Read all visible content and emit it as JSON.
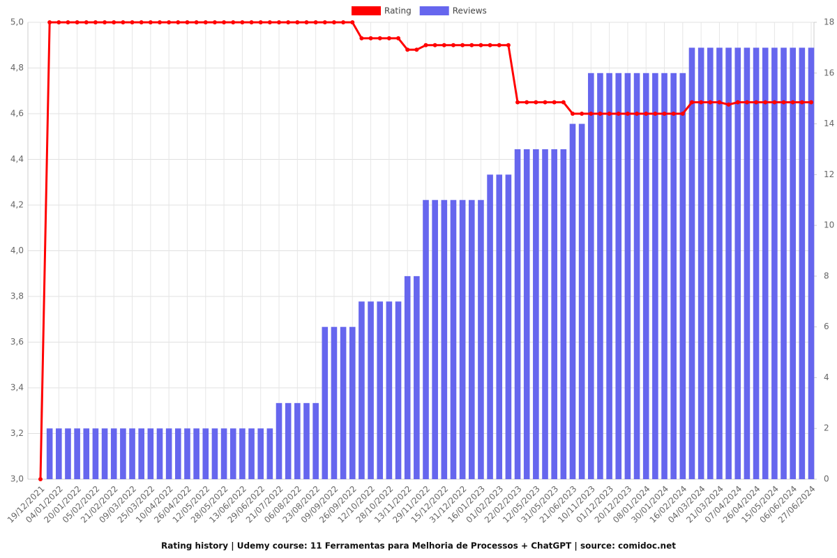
{
  "chart_data": {
    "type": "bar-line",
    "title": "Rating history | Udemy course: 11 Ferramentas para Melhoria de Processos + ChatGPT | source: comidoc.net",
    "categories": [
      "19/12/2021",
      null,
      "04/01/2022",
      null,
      "20/01/2022",
      null,
      "05/02/2022",
      null,
      "21/02/2022",
      null,
      "09/03/2022",
      null,
      "25/03/2022",
      null,
      "10/04/2022",
      null,
      "26/04/2022",
      null,
      "12/05/2022",
      null,
      "28/05/2022",
      null,
      "13/06/2022",
      null,
      "29/06/2022",
      null,
      "21/07/2022",
      null,
      "06/08/2022",
      null,
      "23/08/2022",
      null,
      "09/09/2022",
      null,
      "26/09/2022",
      null,
      "12/10/2022",
      null,
      "28/10/2022",
      null,
      "13/11/2022",
      null,
      "29/11/2022",
      null,
      "15/12/2022",
      null,
      "31/12/2022",
      null,
      "16/01/2023",
      null,
      "01/02/2023",
      null,
      "22/02/2023",
      null,
      "12/05/2023",
      null,
      "31/05/2023",
      null,
      "21/06/2023",
      null,
      "10/11/2023",
      null,
      "01/12/2023",
      null,
      "20/12/2023",
      null,
      "08/01/2024",
      null,
      "30/01/2024",
      null,
      "16/02/2024",
      null,
      "04/03/2024",
      null,
      "21/03/2024",
      null,
      "07/04/2024",
      null,
      "26/04/2024",
      null,
      "15/05/2024",
      null,
      "06/06/2024",
      null,
      "27/06/2024"
    ],
    "series": [
      {
        "name": "Rating",
        "color": "#ff0000",
        "kind": "line",
        "values": [
          3.0,
          5,
          5,
          5,
          5,
          5,
          5,
          5,
          5,
          5,
          5,
          5,
          5,
          5,
          5,
          5,
          5,
          5,
          5,
          5,
          5,
          5,
          5,
          5,
          5,
          5,
          5,
          5,
          5,
          5,
          5,
          5,
          5,
          5,
          5,
          4.93,
          4.93,
          4.93,
          4.93,
          4.93,
          4.88,
          4.88,
          4.9,
          4.9,
          4.9,
          4.9,
          4.9,
          4.9,
          4.9,
          4.9,
          4.9,
          4.9,
          4.65,
          4.65,
          4.65,
          4.65,
          4.65,
          4.65,
          4.6,
          4.6,
          4.6,
          4.6,
          4.6,
          4.6,
          4.6,
          4.6,
          4.6,
          4.6,
          4.6,
          4.6,
          4.6,
          4.65,
          4.65,
          4.65,
          4.65,
          4.64,
          4.65,
          4.65,
          4.65,
          4.65,
          4.65,
          4.65,
          4.65,
          4.65,
          4.65
        ]
      },
      {
        "name": "Reviews",
        "color": "#6666ee",
        "kind": "bar",
        "axis": "y2",
        "values": [
          0,
          2,
          2,
          2,
          2,
          2,
          2,
          2,
          2,
          2,
          2,
          2,
          2,
          2,
          2,
          2,
          2,
          2,
          2,
          2,
          2,
          2,
          2,
          2,
          2,
          2,
          3,
          3,
          3,
          3,
          3,
          6,
          6,
          6,
          6,
          7,
          7,
          7,
          7,
          7,
          8,
          8,
          11,
          11,
          11,
          11,
          11,
          11,
          11,
          12,
          12,
          12,
          13,
          13,
          13,
          13,
          13,
          13,
          14,
          14,
          16,
          16,
          16,
          16,
          16,
          16,
          16,
          16,
          16,
          16,
          16,
          17,
          17,
          17,
          17,
          17,
          17,
          17,
          17,
          17,
          17,
          17,
          17,
          17,
          17
        ]
      }
    ],
    "ylim": [
      3.0,
      5.0
    ],
    "yticks": [
      {
        "value": 3.0,
        "label": "3,0"
      },
      {
        "value": 3.2,
        "label": "3,2"
      },
      {
        "value": 3.4,
        "label": "3,4"
      },
      {
        "value": 3.6,
        "label": "3,6"
      },
      {
        "value": 3.8,
        "label": "3,8"
      },
      {
        "value": 4.0,
        "label": "4,0"
      },
      {
        "value": 4.2,
        "label": "4,2"
      },
      {
        "value": 4.4,
        "label": "4,4"
      },
      {
        "value": 4.6,
        "label": "4,6"
      },
      {
        "value": 4.8,
        "label": "4,8"
      },
      {
        "value": 5.0,
        "label": "5,0"
      }
    ],
    "y2lim": [
      0,
      18
    ],
    "y2ticks": [
      0,
      2,
      4,
      6,
      8,
      10,
      12,
      14,
      16,
      18
    ],
    "grid": true,
    "legend": "top"
  }
}
